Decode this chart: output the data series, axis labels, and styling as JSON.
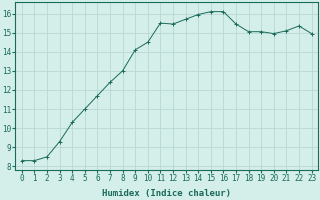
{
  "x": [
    0,
    1,
    2,
    3,
    4,
    5,
    6,
    7,
    8,
    9,
    10,
    11,
    12,
    13,
    14,
    15,
    16,
    17,
    18,
    19,
    20,
    21,
    22,
    23
  ],
  "y": [
    8.3,
    8.3,
    8.5,
    9.3,
    10.3,
    11.0,
    11.7,
    12.4,
    13.0,
    14.1,
    14.5,
    15.5,
    15.45,
    15.7,
    15.95,
    16.1,
    16.1,
    15.45,
    15.05,
    15.05,
    14.95,
    15.1,
    15.35,
    14.95
  ],
  "line_color": "#1a6b5a",
  "marker": "+",
  "marker_size": 3,
  "bg_color": "#d4eeea",
  "grid_color": "#b8d8d4",
  "xlabel": "Humidex (Indice chaleur)",
  "xlim": [
    -0.5,
    23.5
  ],
  "ylim": [
    7.8,
    16.6
  ],
  "yticks": [
    8,
    9,
    10,
    11,
    12,
    13,
    14,
    15,
    16
  ],
  "xticks": [
    0,
    1,
    2,
    3,
    4,
    5,
    6,
    7,
    8,
    9,
    10,
    11,
    12,
    13,
    14,
    15,
    16,
    17,
    18,
    19,
    20,
    21,
    22,
    23
  ],
  "tick_color": "#1a6b5a",
  "label_fontsize": 5.5,
  "xlabel_fontsize": 6.5,
  "axis_color": "#1a6b5a",
  "linewidth": 0.7,
  "markeredgewidth": 0.7
}
